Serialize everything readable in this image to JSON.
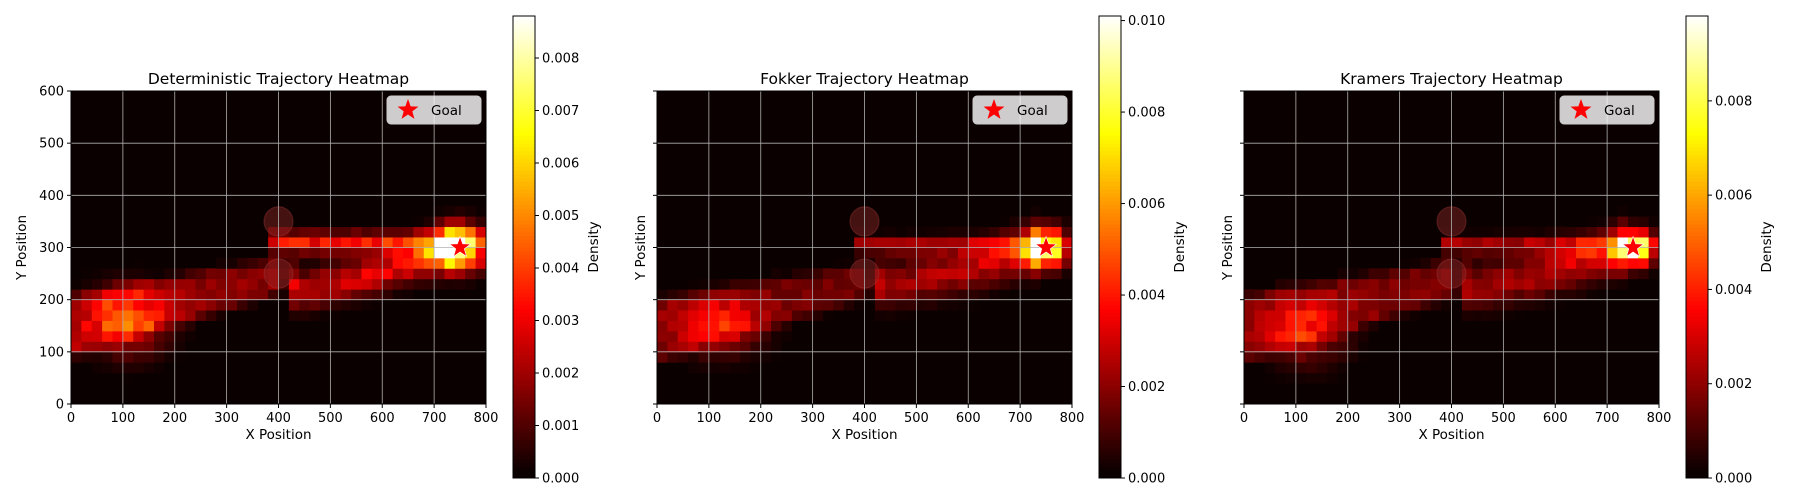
{
  "chart_data": [
    {
      "type": "heatmap",
      "title": "Deterministic Trajectory Heatmap",
      "xlabel": "X Position",
      "ylabel": "Y Position",
      "xlim": [
        0,
        800
      ],
      "ylim": [
        0,
        600
      ],
      "x_ticks": [
        "0",
        "100",
        "200",
        "300",
        "400",
        "500",
        "600",
        "700",
        "800"
      ],
      "y_ticks": [
        "0",
        "100",
        "200",
        "300",
        "400",
        "500",
        "600"
      ],
      "show_y_tick_labels": true,
      "grid": true,
      "legend": {
        "placement": "top-right",
        "entries": [
          "Goal"
        ]
      },
      "goal": {
        "x": 750,
        "y": 300,
        "label": "Goal",
        "color": "#ff0000"
      },
      "obstacles": [
        {
          "x": 400,
          "y": 350,
          "r": 28
        },
        {
          "x": 400,
          "y": 250,
          "r": 28
        }
      ],
      "colorbar": {
        "label": "Density",
        "min": 0,
        "max": 0.0088,
        "ticks": [
          "0.000",
          "0.001",
          "0.002",
          "0.003",
          "0.004",
          "0.005",
          "0.006",
          "0.007",
          "0.008"
        ],
        "tick_values": [
          0,
          0.001,
          0.002,
          0.003,
          0.004,
          0.005,
          0.006,
          0.007,
          0.008
        ],
        "colormap": "hot"
      },
      "density_model": {
        "bin_size_x": 20,
        "bin_size_y": 20,
        "goal_blob": {
          "x": 750,
          "y": 300,
          "sx": 32,
          "sy": 28,
          "peak": 0.0088
        },
        "clusters": [
          {
            "x": 110,
            "y": 160,
            "sx": 55,
            "sy": 45,
            "peak": 0.0028
          }
        ],
        "upper_path": {
          "x_start": 390,
          "x_end": 740,
          "y": 310,
          "width": 14,
          "peak": 0.0032
        },
        "lower_path": {
          "x_start": 420,
          "x_end": 740,
          "y_start": 215,
          "y_end": 300,
          "width": 26,
          "peak": 0.0036
        },
        "background_band": {
          "x_start": 0,
          "x_end": 400,
          "y_top_start": 220,
          "y_top_end": 290,
          "y_bot_start": 80,
          "y_bot_end": 200,
          "level": 0.0018
        }
      }
    },
    {
      "type": "heatmap",
      "title": "Fokker Trajectory Heatmap",
      "xlabel": "X Position",
      "ylabel": "Y Position",
      "xlim": [
        0,
        800
      ],
      "ylim": [
        0,
        600
      ],
      "x_ticks": [
        "0",
        "100",
        "200",
        "300",
        "400",
        "500",
        "600",
        "700",
        "800"
      ],
      "y_ticks": [],
      "show_y_tick_labels": false,
      "grid": true,
      "legend": {
        "placement": "top-right",
        "entries": [
          "Goal"
        ]
      },
      "goal": {
        "x": 750,
        "y": 300,
        "label": "Goal",
        "color": "#ff0000"
      },
      "obstacles": [
        {
          "x": 400,
          "y": 350,
          "r": 28
        },
        {
          "x": 400,
          "y": 250,
          "r": 28
        }
      ],
      "colorbar": {
        "label": "Density",
        "min": 0,
        "max": 0.0101,
        "ticks": [
          "0.000",
          "0.002",
          "0.004",
          "0.006",
          "0.008",
          "0.010"
        ],
        "tick_values": [
          0,
          0.002,
          0.004,
          0.006,
          0.008,
          0.01
        ],
        "colormap": "hot"
      },
      "density_model": {
        "bin_size_x": 20,
        "bin_size_y": 20,
        "goal_blob": {
          "x": 750,
          "y": 300,
          "sx": 26,
          "sy": 24,
          "peak": 0.0101
        },
        "clusters": [
          {
            "x": 120,
            "y": 150,
            "sx": 60,
            "sy": 40,
            "peak": 0.0026
          }
        ],
        "upper_path": {
          "x_start": 390,
          "x_end": 740,
          "y": 305,
          "width": 12,
          "peak": 0.0022
        },
        "lower_path": {
          "x_start": 420,
          "x_end": 740,
          "y_start": 225,
          "y_end": 300,
          "width": 30,
          "peak": 0.0034
        },
        "background_band": {
          "x_start": 0,
          "x_end": 400,
          "y_top_start": 210,
          "y_top_end": 280,
          "y_bot_start": 70,
          "y_bot_end": 190,
          "level": 0.0016
        }
      }
    },
    {
      "type": "heatmap",
      "title": "Kramers Trajectory Heatmap",
      "xlabel": "X Position",
      "ylabel": "Y Position",
      "xlim": [
        0,
        800
      ],
      "ylim": [
        0,
        600
      ],
      "x_ticks": [
        "0",
        "100",
        "200",
        "300",
        "400",
        "500",
        "600",
        "700",
        "800"
      ],
      "y_ticks": [],
      "show_y_tick_labels": false,
      "grid": true,
      "legend": {
        "placement": "top-right",
        "entries": [
          "Goal"
        ]
      },
      "goal": {
        "x": 750,
        "y": 300,
        "label": "Goal",
        "color": "#ff0000"
      },
      "obstacles": [
        {
          "x": 400,
          "y": 350,
          "r": 28
        },
        {
          "x": 400,
          "y": 250,
          "r": 28
        }
      ],
      "colorbar": {
        "label": "Density",
        "min": 0,
        "max": 0.0098,
        "ticks": [
          "0.000",
          "0.002",
          "0.004",
          "0.006",
          "0.008"
        ],
        "tick_values": [
          0,
          0.002,
          0.004,
          0.006,
          0.008
        ],
        "colormap": "hot"
      },
      "density_model": {
        "bin_size_x": 20,
        "bin_size_y": 20,
        "goal_blob": {
          "x": 755,
          "y": 300,
          "sx": 24,
          "sy": 22,
          "peak": 0.0098
        },
        "clusters": [
          {
            "x": 120,
            "y": 140,
            "sx": 55,
            "sy": 45,
            "peak": 0.0024
          }
        ],
        "upper_path": {
          "x_start": 390,
          "x_end": 740,
          "y": 305,
          "width": 12,
          "peak": 0.0024
        },
        "lower_path": {
          "x_start": 420,
          "x_end": 740,
          "y_start": 220,
          "y_end": 300,
          "width": 30,
          "peak": 0.0034
        },
        "background_band": {
          "x_start": 0,
          "x_end": 400,
          "y_top_start": 220,
          "y_top_end": 285,
          "y_bot_start": 70,
          "y_bot_end": 190,
          "level": 0.0017
        }
      }
    }
  ]
}
